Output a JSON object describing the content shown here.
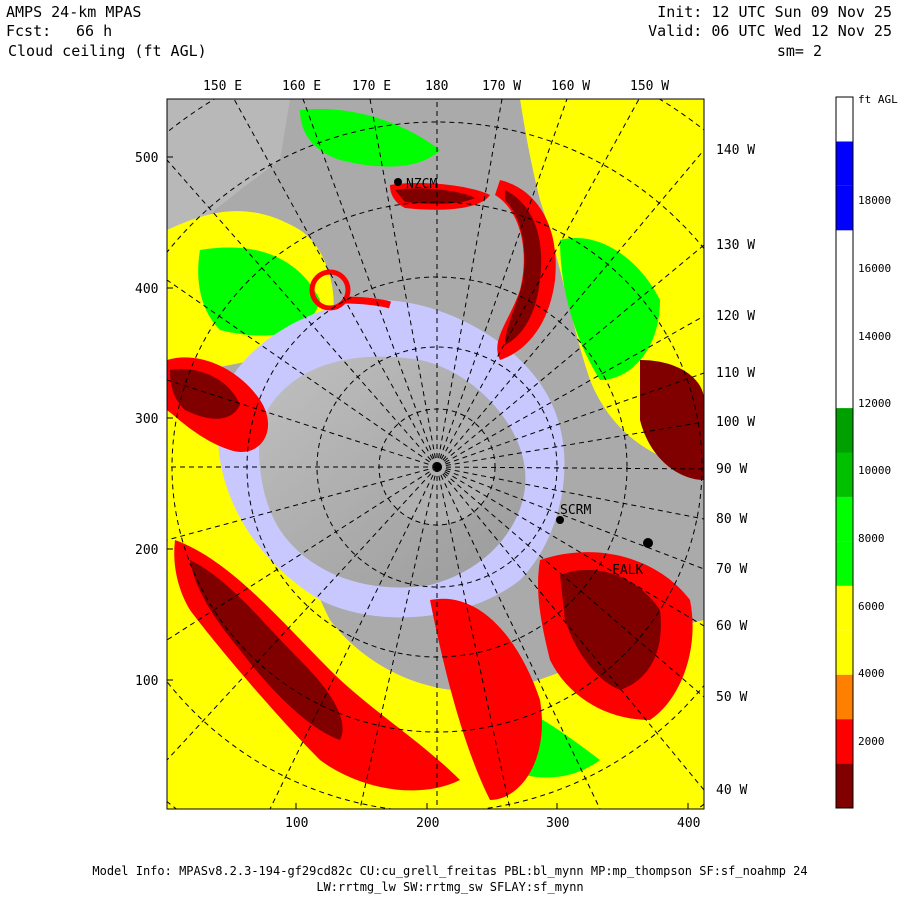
{
  "header": {
    "model": "AMPS 24-km MPAS",
    "fcst_label": "Fcst:",
    "fcst_value": "66 h",
    "field": "Cloud ceiling (ft AGL)",
    "init": "Init: 12 UTC Sun 09 Nov 25",
    "valid": "Valid: 06 UTC Wed 12 Nov 25",
    "smoothing": "sm= 2"
  },
  "axes": {
    "top_longitudes": [
      "150 E",
      "160 E",
      "170 E",
      "180",
      "170 W",
      "160 W",
      "150 W"
    ],
    "right_longitudes": [
      "140 W",
      "130 W",
      "120 W",
      "110 W",
      "100 W",
      "90 W",
      "80 W",
      "70 W",
      "60 W",
      "50 W",
      "40 W"
    ],
    "y_ticks": [
      "500",
      "400",
      "300",
      "200",
      "100"
    ],
    "x_ticks": [
      "100",
      "200",
      "300",
      "400"
    ]
  },
  "colorbar": {
    "unit": "ft AGL",
    "labels": [
      "18000",
      "16000",
      "14000",
      "12000",
      "10000",
      "8000",
      "6000",
      "4000",
      "2000"
    ],
    "colors": [
      "#800000",
      "#ff0000",
      "#ff7f00",
      "#ffff00",
      "#ffff00",
      "#00ff00",
      "#00ff00",
      "#00c000",
      "#00a000",
      "#ffffff",
      "#ffffff",
      "#ffffff",
      "#ffffff",
      "#0000ff",
      "#0000ff",
      "#ffffff"
    ]
  },
  "stations": [
    "NZCM",
    "SCRM",
    "FALK"
  ],
  "footer": {
    "line1": "Model Info: MPASv8.2.3-194-gf29cd82c CU:cu_grell_freitas PBL:bl_mynn MP:mp_thompson SF:sf_noahmp 24",
    "line2": "LW:rrtmg_lw SW:rrtmg_sw SFLAY:sf_mynn"
  },
  "legend_colors": {
    "dark_red": "#800000",
    "red": "#ff0000",
    "orange": "#ff7f00",
    "yellow": "#ffff00",
    "green": "#00ff00",
    "blue": "#0000ff",
    "sea_ice": "#c8c8ff",
    "land": "#b4b4b4"
  }
}
